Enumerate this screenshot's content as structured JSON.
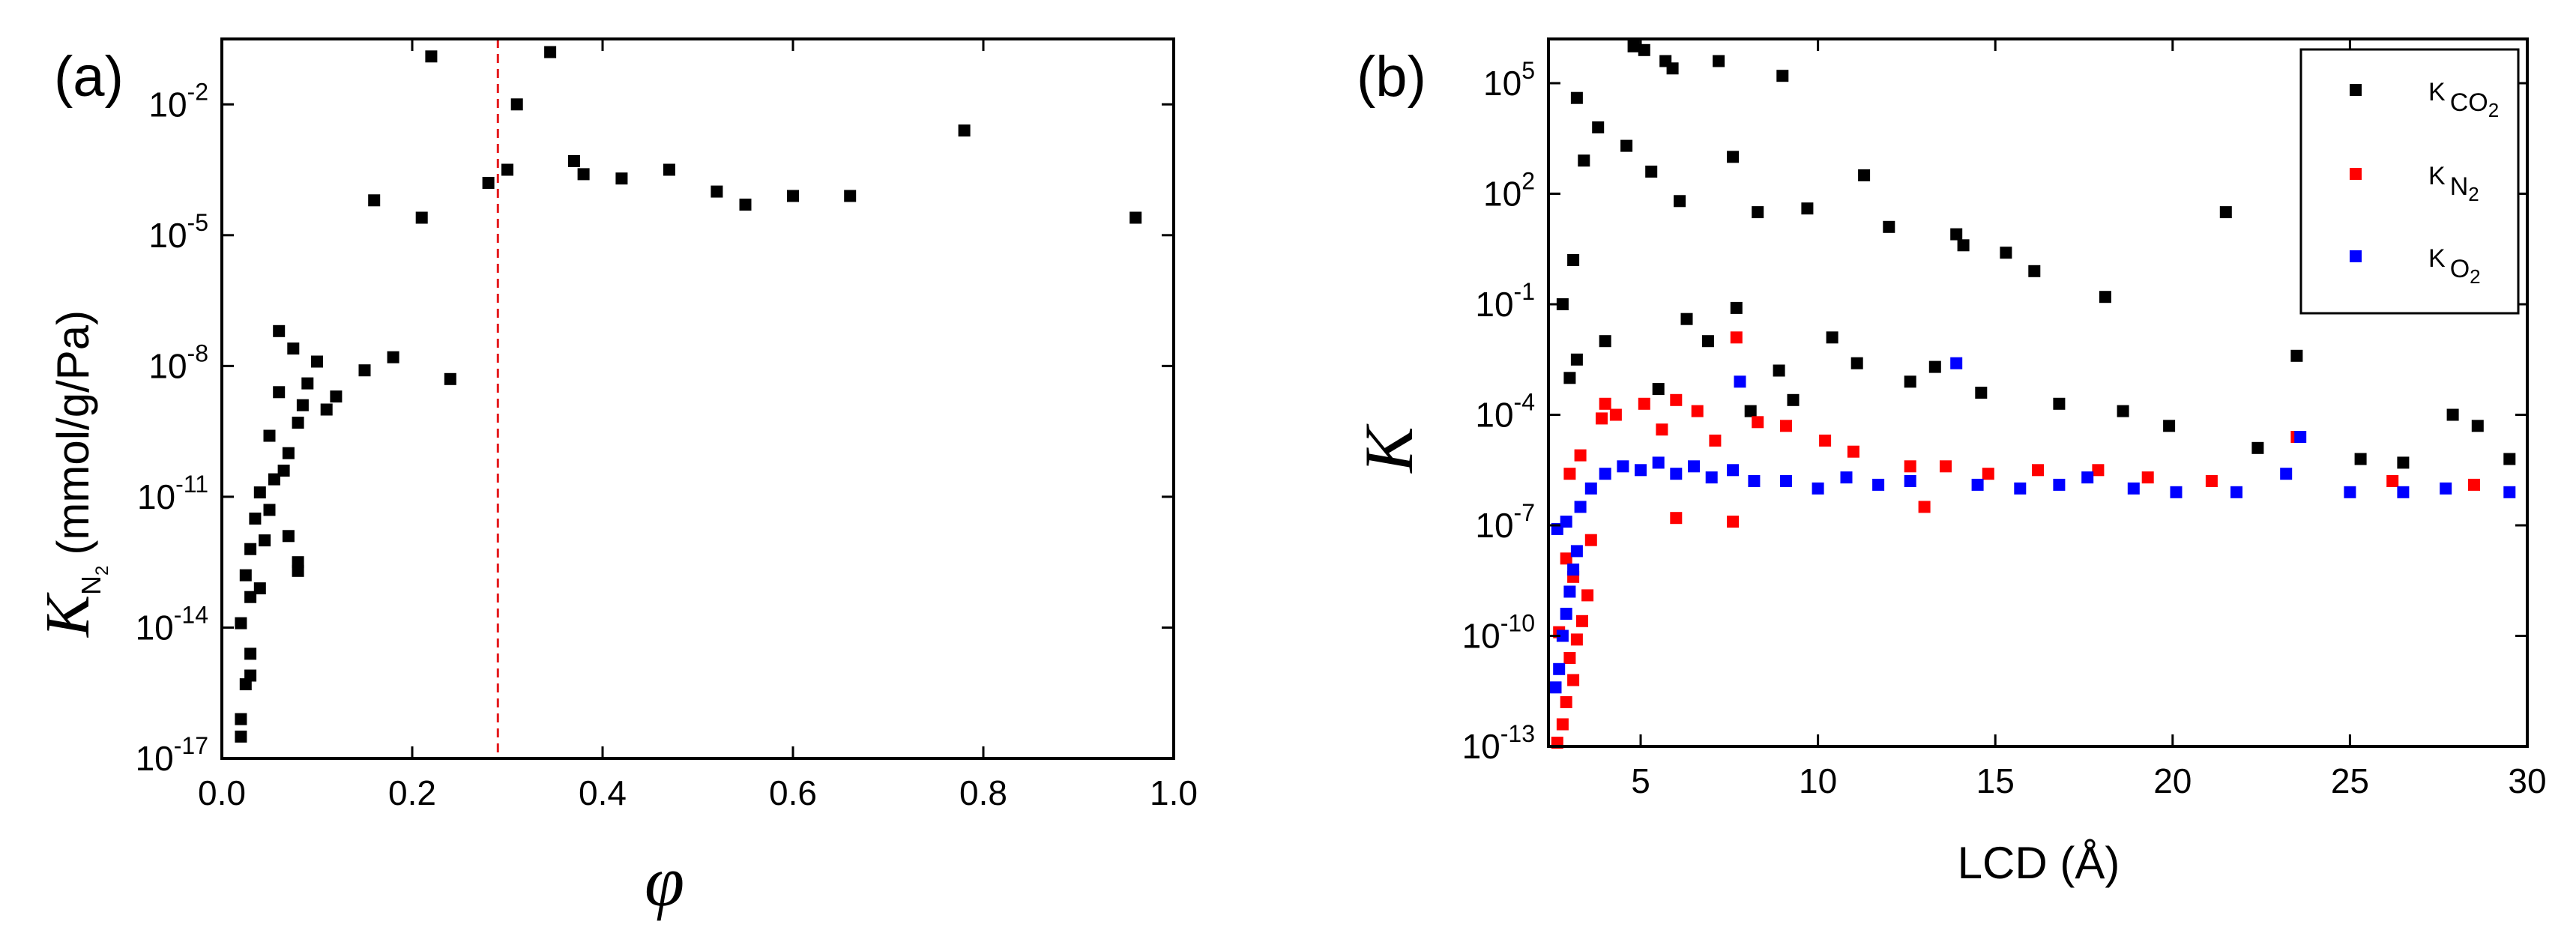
{
  "chart_data": [
    {
      "id": "a",
      "type": "scatter",
      "panel_label": "(a)",
      "xlabel": "φ",
      "ylabel_symbol": "K",
      "ylabel_subscript": "N",
      "ylabel_subsubscript": "2",
      "ylabel_units": "(mmol/g/Pa)",
      "xlim": [
        0.0,
        1.0
      ],
      "ylim_log10": [
        -17,
        -0.5
      ],
      "y_scale": "log",
      "x_ticks": [
        "0.0",
        "0.2",
        "0.4",
        "0.6",
        "0.8",
        "1.0"
      ],
      "y_ticks": [
        {
          "base": "10",
          "exp": "-17"
        },
        {
          "base": "10",
          "exp": "-14"
        },
        {
          "base": "10",
          "exp": "-11"
        },
        {
          "base": "10",
          "exp": "-8"
        },
        {
          "base": "10",
          "exp": "-5"
        },
        {
          "base": "10",
          "exp": "-2"
        }
      ],
      "annotation": {
        "type": "vertical-dashed-line",
        "x": 0.29,
        "color": "#e41a1c"
      },
      "marker_color": "#000000",
      "series": [
        {
          "name": "K_N2",
          "color": "#000000",
          "points_log10": [
            [
              0.22,
              -0.9
            ],
            [
              0.345,
              -0.8
            ],
            [
              0.31,
              -2.0
            ],
            [
              0.78,
              -2.6
            ],
            [
              0.16,
              -4.2
            ],
            [
              0.28,
              -3.8
            ],
            [
              0.42,
              -3.7
            ],
            [
              0.47,
              -3.5
            ],
            [
              0.37,
              -3.3
            ],
            [
              0.6,
              -4.1
            ],
            [
              0.52,
              -4.0
            ],
            [
              0.66,
              -4.1
            ],
            [
              0.38,
              -3.6
            ],
            [
              0.55,
              -4.3
            ],
            [
              0.96,
              -4.6
            ],
            [
              0.02,
              -16.5
            ],
            [
              0.02,
              -16.1
            ],
            [
              0.025,
              -15.3
            ],
            [
              0.03,
              -15.1
            ],
            [
              0.03,
              -14.6
            ],
            [
              0.02,
              -13.9
            ],
            [
              0.03,
              -13.3
            ],
            [
              0.04,
              -13.1
            ],
            [
              0.025,
              -12.8
            ],
            [
              0.03,
              -12.2
            ],
            [
              0.045,
              -12.0
            ],
            [
              0.035,
              -11.5
            ],
            [
              0.05,
              -11.3
            ],
            [
              0.04,
              -10.9
            ],
            [
              0.055,
              -10.6
            ],
            [
              0.065,
              -10.4
            ],
            [
              0.07,
              -10.0
            ],
            [
              0.05,
              -9.6
            ],
            [
              0.08,
              -9.3
            ],
            [
              0.085,
              -8.9
            ],
            [
              0.06,
              -8.6
            ],
            [
              0.09,
              -8.4
            ],
            [
              0.1,
              -7.9
            ],
            [
              0.075,
              -7.6
            ],
            [
              0.06,
              -7.2
            ],
            [
              0.08,
              -12.5
            ],
            [
              0.08,
              -12.7
            ],
            [
              0.07,
              -11.9
            ],
            [
              0.11,
              -9.0
            ],
            [
              0.12,
              -8.7
            ],
            [
              0.15,
              -8.1
            ],
            [
              0.24,
              -8.3
            ],
            [
              0.18,
              -7.8
            ],
            [
              0.3,
              -3.5
            ],
            [
              0.21,
              -4.6
            ]
          ]
        }
      ]
    },
    {
      "id": "b",
      "type": "scatter",
      "panel_label": "(b)",
      "xlabel": "LCD (Å)",
      "ylabel": "K",
      "xlim": [
        2.4,
        30
      ],
      "ylim_log10": [
        -13,
        6.2
      ],
      "y_scale": "log",
      "x_ticks": [
        "5",
        "10",
        "15",
        "20",
        "25",
        "30"
      ],
      "y_ticks": [
        {
          "base": "10",
          "exp": "-13"
        },
        {
          "base": "10",
          "exp": "-10"
        },
        {
          "base": "10",
          "exp": "-7"
        },
        {
          "base": "10",
          "exp": "-4"
        },
        {
          "base": "10",
          "exp": "-1"
        },
        {
          "base": "10",
          "exp": "2"
        },
        {
          "base": "10",
          "exp": "5"
        }
      ],
      "legend_position": "top-right",
      "series": [
        {
          "name": "K_CO2",
          "legend_main": "K",
          "legend_sub": "CO",
          "legend_subsub": "2",
          "color": "#000000",
          "points_log10": [
            [
              4.8,
              6.0
            ],
            [
              5.1,
              5.9
            ],
            [
              7.2,
              5.6
            ],
            [
              9.0,
              5.2
            ],
            [
              5.9,
              5.4
            ],
            [
              5.7,
              5.6
            ],
            [
              3.2,
              4.6
            ],
            [
              3.8,
              3.8
            ],
            [
              4.6,
              3.3
            ],
            [
              5.3,
              2.6
            ],
            [
              3.4,
              2.9
            ],
            [
              6.1,
              1.8
            ],
            [
              7.6,
              3.0
            ],
            [
              8.3,
              1.5
            ],
            [
              9.7,
              1.6
            ],
            [
              11.3,
              2.5
            ],
            [
              12.0,
              1.1
            ],
            [
              13.9,
              0.9
            ],
            [
              14.1,
              0.6
            ],
            [
              15.3,
              0.4
            ],
            [
              16.1,
              -0.1
            ],
            [
              18.1,
              -0.8
            ],
            [
              21.5,
              1.5
            ],
            [
              23.5,
              -2.4
            ],
            [
              27.9,
              -4.0
            ],
            [
              28.6,
              -4.3
            ],
            [
              10.4,
              -1.9
            ],
            [
              11.1,
              -2.6
            ],
            [
              12.6,
              -3.1
            ],
            [
              13.3,
              -2.7
            ],
            [
              14.6,
              -3.4
            ],
            [
              16.8,
              -3.7
            ],
            [
              18.6,
              -3.9
            ],
            [
              19.9,
              -4.3
            ],
            [
              22.4,
              -4.9
            ],
            [
              25.3,
              -5.2
            ],
            [
              26.5,
              -5.3
            ],
            [
              29.5,
              -5.2
            ],
            [
              3.0,
              -3.0
            ],
            [
              3.2,
              -2.5
            ],
            [
              4.0,
              -2.0
            ],
            [
              6.3,
              -1.4
            ],
            [
              6.9,
              -2.0
            ],
            [
              8.9,
              -2.8
            ],
            [
              2.8,
              -1.0
            ],
            [
              3.1,
              0.2
            ],
            [
              7.7,
              -1.1
            ],
            [
              5.5,
              -3.3
            ],
            [
              9.3,
              -3.6
            ],
            [
              8.1,
              -3.9
            ]
          ]
        },
        {
          "name": "K_N2",
          "legend_main": "K",
          "legend_sub": "N",
          "legend_subsub": "2",
          "color": "#ff0000",
          "points_log10": [
            [
              2.65,
              -12.9
            ],
            [
              2.8,
              -12.4
            ],
            [
              2.9,
              -11.8
            ],
            [
              3.1,
              -11.2
            ],
            [
              3.0,
              -10.6
            ],
            [
              3.2,
              -10.1
            ],
            [
              3.35,
              -9.6
            ],
            [
              3.5,
              -8.9
            ],
            [
              3.1,
              -8.4
            ],
            [
              2.7,
              -9.9
            ],
            [
              2.9,
              -7.9
            ],
            [
              3.6,
              -7.4
            ],
            [
              4.0,
              -3.7
            ],
            [
              3.9,
              -4.1
            ],
            [
              4.3,
              -4.0
            ],
            [
              5.1,
              -3.7
            ],
            [
              5.6,
              -4.4
            ],
            [
              6.0,
              -3.6
            ],
            [
              6.6,
              -3.9
            ],
            [
              7.1,
              -4.7
            ],
            [
              7.7,
              -1.9
            ],
            [
              8.3,
              -4.2
            ],
            [
              9.1,
              -4.3
            ],
            [
              10.2,
              -4.7
            ],
            [
              11.0,
              -5.0
            ],
            [
              12.6,
              -5.4
            ],
            [
              13.6,
              -5.4
            ],
            [
              14.8,
              -5.6
            ],
            [
              16.2,
              -5.5
            ],
            [
              17.9,
              -5.5
            ],
            [
              19.3,
              -5.7
            ],
            [
              21.1,
              -5.8
            ],
            [
              23.5,
              -4.6
            ],
            [
              26.2,
              -5.8
            ],
            [
              28.5,
              -5.9
            ],
            [
              7.6,
              -6.9
            ],
            [
              13.0,
              -6.5
            ],
            [
              3.3,
              -5.1
            ],
            [
              3.0,
              -5.6
            ],
            [
              6.0,
              -6.8
            ]
          ]
        },
        {
          "name": "K_O2",
          "legend_main": "K",
          "legend_sub": "O",
          "legend_subsub": "2",
          "color": "#0000ff",
          "points_log10": [
            [
              2.6,
              -11.4
            ],
            [
              2.7,
              -10.9
            ],
            [
              2.8,
              -10.0
            ],
            [
              2.9,
              -9.4
            ],
            [
              3.0,
              -8.8
            ],
            [
              3.1,
              -8.2
            ],
            [
              3.2,
              -7.7
            ],
            [
              2.65,
              -7.1
            ],
            [
              2.9,
              -6.9
            ],
            [
              3.3,
              -6.5
            ],
            [
              3.6,
              -6.0
            ],
            [
              4.0,
              -5.6
            ],
            [
              4.5,
              -5.4
            ],
            [
              5.0,
              -5.5
            ],
            [
              5.5,
              -5.3
            ],
            [
              6.0,
              -5.6
            ],
            [
              6.5,
              -5.4
            ],
            [
              7.0,
              -5.7
            ],
            [
              7.6,
              -5.5
            ],
            [
              8.2,
              -5.8
            ],
            [
              7.8,
              -3.1
            ],
            [
              9.1,
              -5.8
            ],
            [
              10.0,
              -6.0
            ],
            [
              10.8,
              -5.7
            ],
            [
              11.7,
              -5.9
            ],
            [
              12.6,
              -5.8
            ],
            [
              13.9,
              -2.6
            ],
            [
              14.5,
              -5.9
            ],
            [
              15.7,
              -6.0
            ],
            [
              16.8,
              -5.9
            ],
            [
              17.6,
              -5.7
            ],
            [
              18.9,
              -6.0
            ],
            [
              20.1,
              -6.1
            ],
            [
              21.8,
              -6.1
            ],
            [
              23.2,
              -5.6
            ],
            [
              23.6,
              -4.6
            ],
            [
              25.0,
              -6.1
            ],
            [
              26.5,
              -6.1
            ],
            [
              27.7,
              -6.0
            ],
            [
              29.5,
              -6.1
            ]
          ]
        }
      ]
    }
  ]
}
